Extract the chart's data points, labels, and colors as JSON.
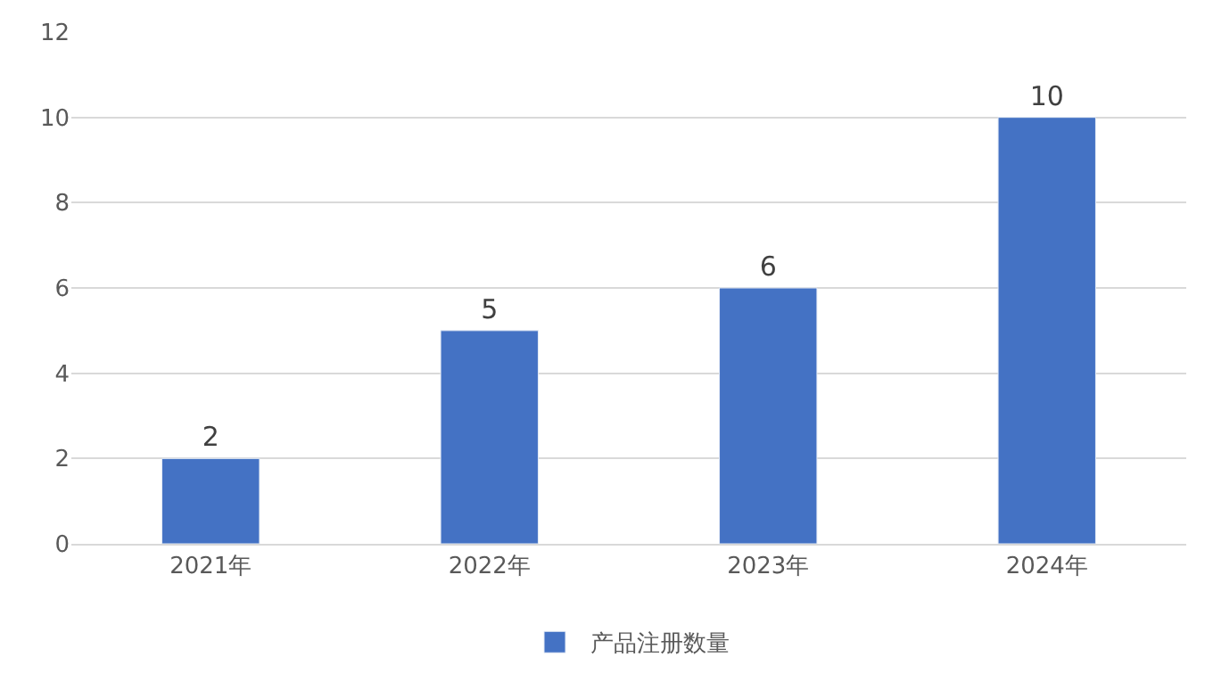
{
  "chart_data": {
    "type": "bar",
    "categories": [
      "2021年",
      "2022年",
      "2023年",
      "2024年"
    ],
    "series": [
      {
        "name": "产品注册数量",
        "color": "#4472c4",
        "values": [
          2,
          5,
          6,
          10
        ]
      }
    ],
    "ylim": [
      0,
      12
    ],
    "yticks": [
      0,
      2,
      4,
      6,
      8,
      10,
      12
    ],
    "grid": "y",
    "legend": "bottom",
    "data_labels": true
  }
}
